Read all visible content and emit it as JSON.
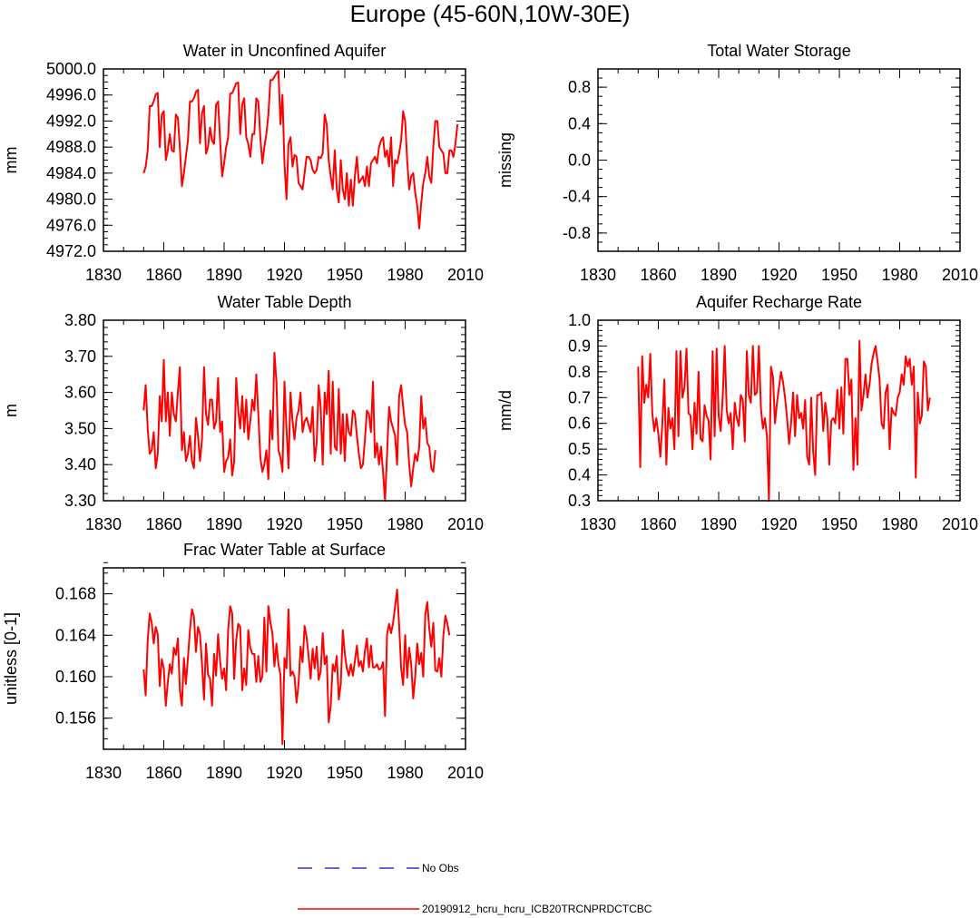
{
  "figure": {
    "title": "Europe (45-60N,10W-30E)",
    "legend": [
      {
        "label": "No Obs",
        "color": "#3333cc",
        "style": "dashed"
      },
      {
        "label": "20190912_hcru_hcru_ICB20TRCNPRDCTCBC",
        "color": "#ff0000",
        "style": "solid"
      }
    ]
  },
  "chart_data": [
    {
      "id": "p1",
      "type": "line",
      "title": "Water in Unconfined Aquifer",
      "ylabel": "mm",
      "xlim": [
        1830,
        2010
      ],
      "xticks": [
        1830,
        1860,
        1890,
        1920,
        1950,
        1980,
        2010
      ],
      "ylim": [
        4972,
        5000
      ],
      "yticks": [
        4972,
        4976,
        4980,
        4984,
        4988,
        4992,
        4996,
        5000
      ],
      "ytick_labels": [
        "4972.0",
        "4976.0",
        "4980.0",
        "4984.0",
        "4988.0",
        "4992.0",
        "4996.0",
        "5000.0"
      ],
      "yminor": 1,
      "series": [
        {
          "name": "20190912_hcru_hcru_ICB20TRCNPRDCTCBC",
          "color": "#ff0000",
          "x_start": 1850,
          "values": [
            4984.0,
            4985.0,
            4987.5,
            4994.3,
            4994.3,
            4995.0,
            4996.1,
            4996.3,
            4988.0,
            4993.0,
            4993.5,
            4986.0,
            4987.5,
            4990.0,
            4987.5,
            4987.3,
            4993.0,
            4992.5,
            4988.0,
            4982.0,
            4984.0,
            4986.5,
            4989.0,
            4995.0,
            4995.0,
            4995.5,
            4996.5,
            4996.8,
            4988.6,
            4993.2,
            4994.3,
            4987.0,
            4988.0,
            4991.0,
            4989.0,
            4988.5,
            4994.5,
            4995.0,
            4989.0,
            4983.5,
            4985.5,
            4988.0,
            4989.5,
            4996.2,
            4996.3,
            4997.0,
            4997.8,
            4997.9,
            4990.0,
            4994.5,
            4995.5,
            4989.5,
            4988.5,
            4986.5,
            4990.0,
            4990.0,
            4995.5,
            4995.0,
            4989.5,
            4985.5,
            4988.0,
            4990.0,
            4993.0,
            4998.3,
            4998.3,
            4998.8,
            4999.3,
            4999.7,
            4991.5,
            4996.0,
            4985.5,
            4980.0,
            4988.5,
            4989.5,
            4985.0,
            4986.8,
            4986.5,
            4982.5,
            4982.0,
            4981.5,
            4984.0,
            4986.5,
            4986.5,
            4986.0,
            4984.5,
            4984.0,
            4984.5,
            4986.5,
            4986.3,
            4987.0,
            4993.0,
            4991.5,
            4986.0,
            4983.5,
            4981.5,
            4987.5,
            4981.5,
            4979.5,
            4986.0,
            4981.5,
            4980.0,
            4984.0,
            4979.0,
            4983.0,
            4979.0,
            4983.5,
            4986.5,
            4982.5,
            4983.0,
            4983.5,
            4982.0,
            4985.0,
            4982.0,
            4985.5,
            4986.0,
            4986.5,
            4985.5,
            4988.0,
            4989.0,
            4989.5,
            4986.5,
            4987.5,
            4985.0,
            4989.5,
            4982.0,
            4986.0,
            4985.5,
            4987.0,
            4989.0,
            4993.5,
            4992.0,
            4986.0,
            4981.5,
            4983.5,
            4984.0,
            4981.0,
            4979.0,
            4975.5,
            4979.5,
            4982.5,
            4984.0,
            4986.5,
            4983.5,
            4982.5,
            4988.0,
            4992.0,
            4992.0,
            4988.0,
            4987.5,
            4987.0,
            4984.0,
            4984.0,
            4987.5,
            4987.5,
            4986.5,
            4988.5,
            4991.5
          ]
        }
      ]
    },
    {
      "id": "p2",
      "type": "line",
      "title": "Total Water Storage",
      "ylabel": "missing",
      "xlim": [
        1830,
        2010
      ],
      "xticks": [
        1830,
        1860,
        1890,
        1920,
        1950,
        1980,
        2010
      ],
      "ylim": [
        -1.0,
        1.0
      ],
      "yticks": [
        -0.8,
        -0.4,
        0.0,
        0.4,
        0.8
      ],
      "ytick_labels": [
        "-0.8",
        "-0.4",
        "0.0",
        "0.4",
        "0.8"
      ],
      "yminor": 0.1,
      "series": []
    },
    {
      "id": "p3",
      "type": "line",
      "title": "Water Table Depth",
      "ylabel": "m",
      "xlim": [
        1830,
        2010
      ],
      "xticks": [
        1830,
        1860,
        1890,
        1920,
        1950,
        1980,
        2010
      ],
      "ylim": [
        3.3,
        3.8
      ],
      "yticks": [
        3.3,
        3.4,
        3.5,
        3.6,
        3.7,
        3.8
      ],
      "ytick_labels": [
        "3.30",
        "3.40",
        "3.50",
        "3.60",
        "3.70",
        "3.80"
      ],
      "yminor": 0.02,
      "series": [
        {
          "name": "20190912_hcru_hcru_ICB20TRCNPRDCTCBC",
          "color": "#ff0000",
          "x_start": 1850,
          "values": [
            3.55,
            3.62,
            3.5,
            3.43,
            3.44,
            3.49,
            3.39,
            3.43,
            3.59,
            3.52,
            3.69,
            3.52,
            3.6,
            3.48,
            3.6,
            3.54,
            3.52,
            3.6,
            3.67,
            3.44,
            3.49,
            3.41,
            3.43,
            3.48,
            3.41,
            3.39,
            3.53,
            3.48,
            3.41,
            3.47,
            3.67,
            3.54,
            3.51,
            3.58,
            3.58,
            3.5,
            3.52,
            3.64,
            3.49,
            3.52,
            3.38,
            3.41,
            3.42,
            3.47,
            3.37,
            3.41,
            3.64,
            3.55,
            3.5,
            3.59,
            3.49,
            3.58,
            3.47,
            3.52,
            3.58,
            3.55,
            3.65,
            3.54,
            3.42,
            3.38,
            3.4,
            3.44,
            3.36,
            3.55,
            3.47,
            3.71,
            3.63,
            3.44,
            3.42,
            3.38,
            3.63,
            3.5,
            3.39,
            3.6,
            3.52,
            3.47,
            3.53,
            3.55,
            3.6,
            3.49,
            3.52,
            3.53,
            3.51,
            3.49,
            3.56,
            3.41,
            3.46,
            3.62,
            3.56,
            3.4,
            3.6,
            3.54,
            3.66,
            3.43,
            3.63,
            3.45,
            3.44,
            3.61,
            3.43,
            3.54,
            3.41,
            3.54,
            3.49,
            3.48,
            3.55,
            3.54,
            3.48,
            3.43,
            3.39,
            3.4,
            3.47,
            3.55,
            3.54,
            3.49,
            3.63,
            3.42,
            3.46,
            3.4,
            3.45,
            3.38,
            3.3,
            3.43,
            3.56,
            3.52,
            3.5,
            3.48,
            3.4,
            3.59,
            3.62,
            3.56,
            3.51,
            3.49,
            3.4,
            3.34,
            3.39,
            3.43,
            3.41,
            3.45,
            3.59,
            3.5,
            3.53,
            3.46,
            3.45,
            3.39,
            3.38,
            3.44
          ]
        }
      ]
    },
    {
      "id": "p4",
      "type": "line",
      "title": "Aquifer Recharge Rate",
      "ylabel": "mm/d",
      "xlim": [
        1830,
        2010
      ],
      "xticks": [
        1830,
        1860,
        1890,
        1920,
        1950,
        1980,
        2010
      ],
      "ylim": [
        0.3,
        1.0
      ],
      "yticks": [
        0.3,
        0.4,
        0.5,
        0.6,
        0.7,
        0.8,
        0.9,
        1.0
      ],
      "ytick_labels": [
        "0.3",
        "0.4",
        "0.5",
        "0.6",
        "0.7",
        "0.8",
        "0.9",
        "1.0"
      ],
      "yminor": 0.02,
      "series": [
        {
          "name": "20190912_hcru_hcru_ICB20TRCNPRDCTCBC",
          "color": "#ff0000",
          "x_start": 1850,
          "values": [
            0.82,
            0.43,
            0.86,
            0.68,
            0.75,
            0.7,
            0.87,
            0.64,
            0.57,
            0.62,
            0.56,
            0.47,
            0.6,
            0.77,
            0.44,
            0.66,
            0.58,
            0.62,
            0.5,
            0.88,
            0.55,
            0.88,
            0.7,
            0.74,
            0.89,
            0.64,
            0.63,
            0.5,
            0.68,
            0.56,
            0.8,
            0.54,
            0.53,
            0.67,
            0.63,
            0.61,
            0.46,
            0.88,
            0.55,
            0.89,
            0.63,
            0.57,
            0.7,
            0.9,
            0.65,
            0.6,
            0.64,
            0.5,
            0.68,
            0.62,
            0.59,
            0.71,
            0.69,
            0.53,
            0.88,
            0.71,
            0.68,
            0.9,
            0.71,
            0.72,
            0.9,
            0.66,
            0.58,
            0.62,
            0.55,
            0.3,
            0.82,
            0.78,
            0.6,
            0.68,
            0.74,
            0.8,
            0.76,
            0.7,
            0.62,
            0.52,
            0.6,
            0.72,
            0.55,
            0.71,
            0.62,
            0.64,
            0.58,
            0.69,
            0.47,
            0.44,
            0.7,
            0.49,
            0.4,
            0.71,
            0.71,
            0.72,
            0.57,
            0.68,
            0.62,
            0.44,
            0.61,
            0.62,
            0.6,
            0.73,
            0.58,
            0.74,
            0.56,
            0.85,
            0.85,
            0.71,
            0.77,
            0.42,
            0.62,
            0.44,
            0.92,
            0.65,
            0.71,
            0.79,
            0.7,
            0.75,
            0.83,
            0.87,
            0.9,
            0.84,
            0.77,
            0.6,
            0.58,
            0.72,
            0.75,
            0.5,
            0.66,
            0.64,
            0.63,
            0.7,
            0.72,
            0.79,
            0.75,
            0.86,
            0.82,
            0.85,
            0.75,
            0.82,
            0.39,
            0.72,
            0.6,
            0.63,
            0.84,
            0.82,
            0.65,
            0.7
          ]
        }
      ]
    },
    {
      "id": "p5",
      "type": "line",
      "title": "Frac Water Table at Surface",
      "ylabel": "unitless [0-1]",
      "xlim": [
        1830,
        2010
      ],
      "xticks": [
        1830,
        1860,
        1890,
        1920,
        1950,
        1980,
        2010
      ],
      "ylim": [
        0.153,
        0.1705
      ],
      "yticks": [
        0.156,
        0.16,
        0.164,
        0.168
      ],
      "ytick_labels": [
        "0.156",
        "0.160",
        "0.164",
        "0.168"
      ],
      "yminor": 0.001,
      "series": [
        {
          "name": "20190912_hcru_hcru_ICB20TRCNPRDCTCBC",
          "color": "#ff0000",
          "x_start": 1850,
          "values": [
            0.1607,
            0.1582,
            0.1635,
            0.1661,
            0.1652,
            0.1632,
            0.1648,
            0.1641,
            0.1591,
            0.1617,
            0.1608,
            0.1572,
            0.1595,
            0.1612,
            0.1603,
            0.1628,
            0.1621,
            0.1637,
            0.1587,
            0.1572,
            0.1618,
            0.1593,
            0.1618,
            0.1645,
            0.1665,
            0.1658,
            0.1624,
            0.1648,
            0.1641,
            0.1612,
            0.1578,
            0.1632,
            0.1602,
            0.1598,
            0.1572,
            0.1622,
            0.1601,
            0.1641,
            0.1615,
            0.1598,
            0.1608,
            0.1587,
            0.1645,
            0.1668,
            0.1661,
            0.1598,
            0.1635,
            0.1651,
            0.1648,
            0.1587,
            0.1608,
            0.1592,
            0.1645,
            0.1628,
            0.1622,
            0.1622,
            0.1595,
            0.162,
            0.1595,
            0.16,
            0.1657,
            0.1605,
            0.1668,
            0.1652,
            0.1642,
            0.161,
            0.1632,
            0.1612,
            0.1602,
            0.1535,
            0.1618,
            0.1608,
            0.1665,
            0.1601,
            0.1605,
            0.16,
            0.1575,
            0.1593,
            0.1629,
            0.1614,
            0.1649,
            0.1638,
            0.162,
            0.1598,
            0.1627,
            0.1608,
            0.1629,
            0.1597,
            0.1605,
            0.1642,
            0.1612,
            0.162,
            0.1556,
            0.1572,
            0.1612,
            0.1605,
            0.162,
            0.1578,
            0.1593,
            0.1645,
            0.1622,
            0.1608,
            0.1601,
            0.1612,
            0.1601,
            0.1615,
            0.163,
            0.161,
            0.1615,
            0.1605,
            0.1625,
            0.1637,
            0.1609,
            0.163,
            0.1609,
            0.1609,
            0.1612,
            0.1607,
            0.1608,
            0.1614,
            0.1562,
            0.1641,
            0.1651,
            0.1642,
            0.1652,
            0.1668,
            0.1684,
            0.165,
            0.1608,
            0.1592,
            0.164,
            0.1599,
            0.1628,
            0.1612,
            0.1579,
            0.16,
            0.1632,
            0.1612,
            0.1623,
            0.16,
            0.166,
            0.1672,
            0.1646,
            0.1629,
            0.1652,
            0.1606,
            0.1605,
            0.1618,
            0.16,
            0.164,
            0.1659,
            0.1651,
            0.164
          ]
        }
      ]
    }
  ]
}
